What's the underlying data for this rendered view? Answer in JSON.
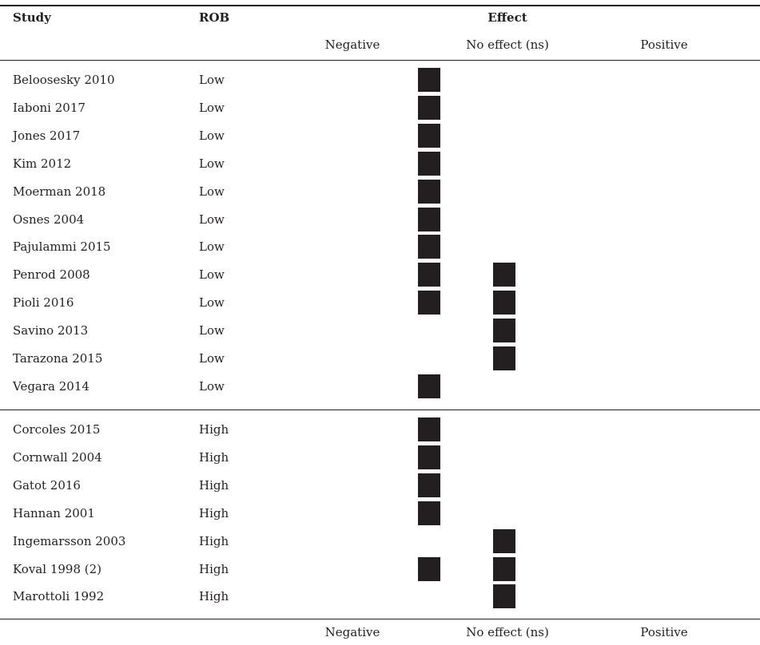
{
  "header": {
    "study": "Study",
    "rob": "ROB",
    "effect": "Effect",
    "columns": [
      "Negative",
      "No effect (ns)",
      "Positive"
    ]
  },
  "footer": {
    "columns": [
      "Negative",
      "No effect (ns)",
      "Positive"
    ]
  },
  "colors": {
    "ink": "#231f20",
    "background": "#ffffff"
  },
  "chart_data": {
    "type": "table",
    "columns": [
      "Study",
      "ROB",
      "Negative",
      "No effect (ns)",
      "Positive"
    ],
    "groups": [
      {
        "rob": "Low",
        "rows": [
          {
            "study": "Beloosesky 2010",
            "rob": "Low",
            "marks": [
              "Negative"
            ]
          },
          {
            "study": "Iaboni 2017",
            "rob": "Low",
            "marks": [
              "Negative"
            ]
          },
          {
            "study": "Jones 2017",
            "rob": "Low",
            "marks": [
              "Negative"
            ]
          },
          {
            "study": "Kim 2012",
            "rob": "Low",
            "marks": [
              "Negative"
            ]
          },
          {
            "study": "Moerman 2018",
            "rob": "Low",
            "marks": [
              "Negative"
            ]
          },
          {
            "study": "Osnes 2004",
            "rob": "Low",
            "marks": [
              "Negative"
            ]
          },
          {
            "study": "Pajulammi 2015",
            "rob": "Low",
            "marks": [
              "Negative"
            ]
          },
          {
            "study": "Penrod 2008",
            "rob": "Low",
            "marks": [
              "Negative",
              "No effect (ns)"
            ]
          },
          {
            "study": "Pioli 2016",
            "rob": "Low",
            "marks": [
              "Negative",
              "No effect (ns)"
            ]
          },
          {
            "study": "Savino 2013",
            "rob": "Low",
            "marks": [
              "No effect (ns)"
            ]
          },
          {
            "study": "Tarazona 2015",
            "rob": "Low",
            "marks": [
              "No effect (ns)"
            ]
          },
          {
            "study": "Vegara 2014",
            "rob": "Low",
            "marks": [
              "Negative"
            ]
          }
        ]
      },
      {
        "rob": "High",
        "rows": [
          {
            "study": "Corcoles 2015",
            "rob": "High",
            "marks": [
              "Negative"
            ]
          },
          {
            "study": "Cornwall 2004",
            "rob": "High",
            "marks": [
              "Negative"
            ]
          },
          {
            "study": "Gatot 2016",
            "rob": "High",
            "marks": [
              "Negative"
            ]
          },
          {
            "study": "Hannan 2001",
            "rob": "High",
            "marks": [
              "Negative"
            ]
          },
          {
            "study": "Ingemarsson 2003",
            "rob": "High",
            "marks": [
              "No effect (ns)"
            ]
          },
          {
            "study": "Koval 1998 (2)",
            "rob": "High",
            "marks": [
              "Negative",
              "No effect (ns)"
            ]
          },
          {
            "study": "Marottoli 1992",
            "rob": "High",
            "marks": [
              "No effect (ns)"
            ]
          }
        ]
      }
    ]
  }
}
